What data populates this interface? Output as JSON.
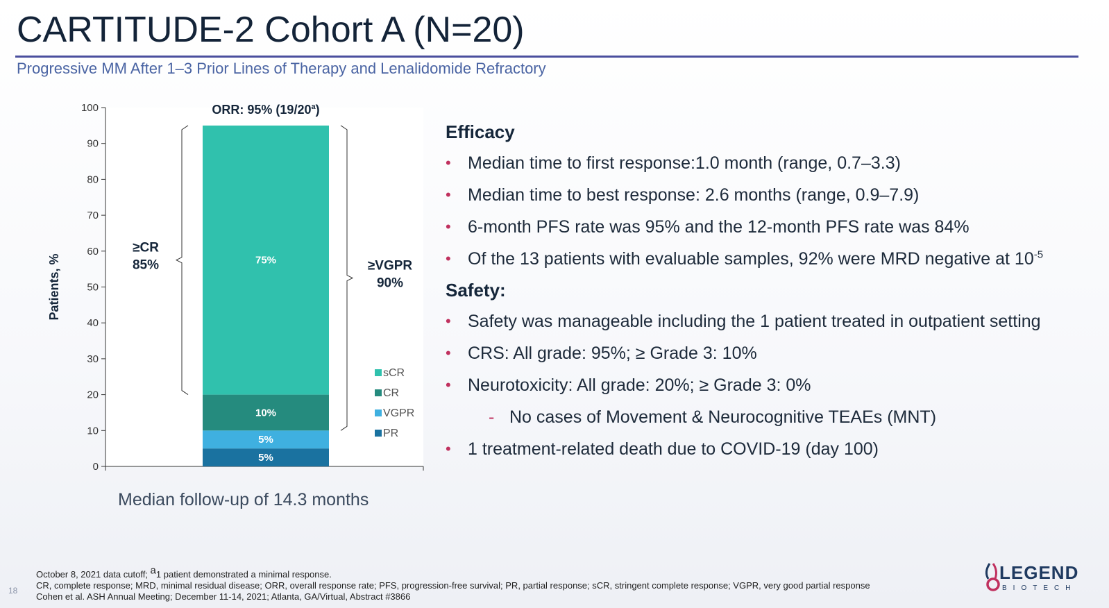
{
  "slide": {
    "title": "CARTITUDE-2 Cohort A (N=20)",
    "subtitle": "Progressive MM After 1–3 Prior Lines of Therapy and Lenalidomide Refractory",
    "page_number": "18",
    "followup_text": "Median follow-up of 14.3 months"
  },
  "chart_data": {
    "type": "bar",
    "stacked": true,
    "categories": [
      ""
    ],
    "series": [
      {
        "name": "PR",
        "values": [
          5
        ],
        "label": "5%",
        "color": "#1a72a0"
      },
      {
        "name": "VGPR",
        "values": [
          5
        ],
        "label": "5%",
        "color": "#3fb0e0"
      },
      {
        "name": "CR",
        "values": [
          10
        ],
        "label": "10%",
        "color": "#258b7e"
      },
      {
        "name": "sCR",
        "values": [
          75
        ],
        "label": "75%",
        "color": "#30c1ad"
      }
    ],
    "ylabel": "Patients, %",
    "ylim": [
      0,
      100
    ],
    "yticks": [
      0,
      10,
      20,
      30,
      40,
      50,
      60,
      70,
      80,
      90,
      100
    ],
    "legend_order": [
      "sCR",
      "CR",
      "VGPR",
      "PR"
    ],
    "legend_position": "bottom-right",
    "annotations": {
      "orr": {
        "text": "ORR: 95% (19/20",
        "sup": "a",
        "close": ")",
        "from": 0,
        "to": 95
      },
      "cr": {
        "line1": "≥CR",
        "line2": "85%",
        "from": 20,
        "to": 95
      },
      "vgpr": {
        "line1": "≥VGPR",
        "line2": "90%",
        "from": 10,
        "to": 95
      }
    }
  },
  "panel": {
    "efficacy_heading": "Efficacy",
    "efficacy_bullets": [
      "Median time to first response:1.0 month (range, 0.7–3.3)",
      "Median time to best response: 2.6 months (range, 0.9–7.9)",
      "6-month PFS rate was 95% and the 12-month PFS rate was 84%"
    ],
    "mrd_bullet": "Of the 13 patients with evaluable samples, 92% were MRD negative at 10",
    "mrd_exponent": "-5",
    "safety_heading": "Safety:",
    "safety_bullets": [
      "Safety was manageable including the 1 patient treated in outpatient setting",
      "CRS: All grade: 95%; ≥ Grade 3: 10%",
      "Neurotoxicity: All grade: 20%; ≥ Grade 3: 0%"
    ],
    "sub_bullet": "No cases of Movement & Neurocognitive TEAEs (MNT)",
    "last_bullet": "1 treatment-related death due to COVID-19 (day 100)",
    "bullet_glyph": "•",
    "dash_glyph": "-"
  },
  "footnotes": {
    "line1_a": "October 8, 2021 data cutoff; ",
    "line1_sup": "a",
    "line1_b": "1 patient demonstrated a minimal response.",
    "line2": "CR, complete response; MRD, minimal residual disease; ORR, overall response rate; PFS, progression-free survival; PR, partial response; sCR, stringent complete response; VGPR, very good partial response",
    "line3": "Cohen et al. ASH Annual Meeting; December 11-14, 2021; Atlanta, GA/Virtual, Abstract #3866"
  },
  "logo": {
    "word": "LEGEND",
    "sub": "BIOTECH",
    "colors": {
      "mark": "#c0305e",
      "text": "#1f3a60"
    }
  }
}
